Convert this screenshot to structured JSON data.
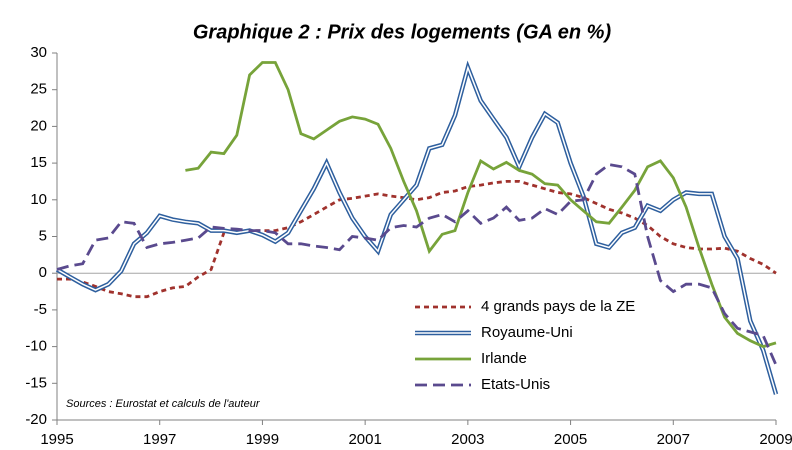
{
  "chart_data": {
    "type": "line",
    "title": "Graphique 2 : Prix des logements (GA en %)",
    "annotation": "Sources : Eurostat et calculs de l'auteur",
    "x": [
      1995,
      1995.25,
      1995.5,
      1995.75,
      1996,
      1996.25,
      1996.5,
      1996.75,
      1997,
      1997.25,
      1997.5,
      1997.75,
      1998,
      1998.25,
      1998.5,
      1998.75,
      1999,
      1999.25,
      1999.5,
      1999.75,
      2000,
      2000.25,
      2000.5,
      2000.75,
      2001,
      2001.25,
      2001.5,
      2001.75,
      2002,
      2002.25,
      2002.5,
      2002.75,
      2003,
      2003.25,
      2003.5,
      2003.75,
      2004,
      2004.25,
      2004.5,
      2004.75,
      2005,
      2005.25,
      2005.5,
      2005.75,
      2006,
      2006.25,
      2006.5,
      2006.75,
      2007,
      2007.25,
      2007.5,
      2007.75,
      2008,
      2008.25,
      2008.5,
      2008.75,
      2009
    ],
    "series": [
      {
        "name": "4 grands pays de la ZE",
        "color": "#a0322d",
        "dash": "dashed",
        "values": [
          -0.8,
          -0.8,
          -1.2,
          -1.8,
          -2.5,
          -2.8,
          -3.2,
          -3.2,
          -2.5,
          -2,
          -1.8,
          -0.5,
          0.5,
          5.5,
          5.8,
          5.8,
          5.8,
          5.8,
          6.2,
          7,
          8,
          9,
          10,
          10.2,
          10.5,
          10.8,
          10.5,
          10.3,
          10,
          10.3,
          11,
          11.2,
          11.8,
          12,
          12.3,
          12.5,
          12.5,
          12,
          11.5,
          11,
          10.8,
          10.3,
          9.5,
          8.7,
          8.2,
          7.5,
          6.5,
          5,
          4,
          3.5,
          3.3,
          3.3,
          3.4,
          3,
          2,
          1.2,
          0
        ]
      },
      {
        "name": "Royaume-Uni",
        "color": "#2e5f9e",
        "dash": "double",
        "values": [
          0.5,
          -0.5,
          -1.5,
          -2.3,
          -1.5,
          0.3,
          4,
          5.5,
          7.8,
          7.3,
          7,
          6.8,
          5.8,
          5.8,
          5.5,
          5.8,
          5.2,
          4.3,
          5.5,
          8.5,
          11.5,
          15,
          11,
          7.5,
          5,
          3,
          8,
          10,
          12,
          17,
          17.5,
          21.5,
          28,
          23.5,
          21,
          18.5,
          14.5,
          18.5,
          21.7,
          20.5,
          15,
          10.5,
          4,
          3.5,
          5.5,
          6.2,
          9.2,
          8.5,
          10,
          11,
          10.8,
          10.8,
          5,
          2,
          -6.5,
          -10.5,
          -16.5
        ]
      },
      {
        "name": "Irlande",
        "color": "#77a33a",
        "dash": "solid",
        "values": [
          null,
          null,
          null,
          null,
          null,
          null,
          null,
          null,
          null,
          null,
          14,
          14.3,
          16.5,
          16.3,
          18.8,
          27,
          28.7,
          28.7,
          25,
          19,
          18.3,
          19.5,
          20.7,
          21.3,
          21,
          20.3,
          17,
          12.5,
          8.5,
          3,
          5.3,
          5.8,
          11,
          15.3,
          14.2,
          15.1,
          14,
          13.5,
          12.2,
          12,
          10,
          8.5,
          7,
          6.8,
          9,
          11.3,
          14.5,
          15.3,
          13,
          9,
          3.5,
          -1.5,
          -6,
          -8.2,
          -9.2,
          -10,
          -9.5
        ]
      },
      {
        "name": "Etats-Unis",
        "color": "#5a4a8e",
        "dash": "longdash",
        "values": [
          0.5,
          1,
          1.3,
          4.5,
          4.8,
          7,
          6.8,
          3.5,
          4,
          4.2,
          4.5,
          4.8,
          6.3,
          6.1,
          6,
          5.8,
          5.8,
          5.5,
          4,
          4,
          3.7,
          3.5,
          3.2,
          5,
          4.8,
          4.5,
          6.2,
          6.5,
          6.3,
          7.5,
          8,
          7,
          8.5,
          6.8,
          7.5,
          9,
          7.2,
          7.5,
          8.8,
          8,
          9.8,
          10,
          13.5,
          14.8,
          14.5,
          13.5,
          5,
          -1,
          -2.5,
          -1.5,
          -1.5,
          -2,
          -5.5,
          -7.5,
          -8,
          -8.5,
          -12.5
        ]
      }
    ],
    "xlim": [
      1995,
      2009
    ],
    "xticks": [
      1995,
      1997,
      1999,
      2001,
      2003,
      2005,
      2007,
      2009
    ],
    "ylim": [
      -20,
      30
    ],
    "yticks": [
      -20,
      -15,
      -10,
      -5,
      0,
      5,
      10,
      15,
      20,
      25,
      30
    ],
    "legend": "lower right",
    "grid": false
  }
}
